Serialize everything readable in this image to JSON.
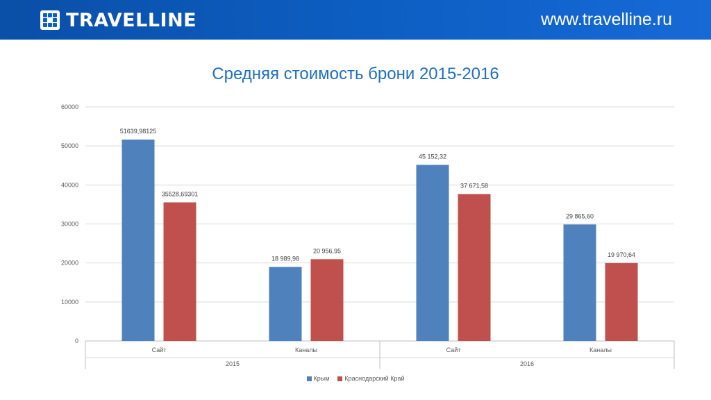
{
  "header": {
    "brand": "TRAVELLINE",
    "website": "www.travelline.ru"
  },
  "colors": {
    "header_bg": "#0d5fc4",
    "title": "#1f6fc5",
    "series_crimea": "#4f81bd",
    "series_krasnodar": "#c0504d"
  },
  "chart_data": {
    "type": "bar",
    "title": "Средняя стоимость брони 2015-2016",
    "xlabel": "",
    "ylabel": "",
    "ylim": [
      0,
      60000
    ],
    "yticks": [
      "0",
      "10000",
      "20000",
      "30000",
      "40000",
      "50000",
      "60000"
    ],
    "grid": true,
    "legend_position": "bottom",
    "categories": [
      "Сайт",
      "Каналы",
      "Сайт",
      "Каналы"
    ],
    "groups": [
      {
        "label": "2015",
        "categories": [
          "Сайт",
          "Каналы"
        ]
      },
      {
        "label": "2016",
        "categories": [
          "Сайт",
          "Каналы"
        ]
      }
    ],
    "series": [
      {
        "name": "Крым",
        "color": "#4f81bd",
        "values": [
          51639.98125,
          18989.98,
          45152.32,
          29865.6
        ],
        "labels": [
          "51639,98125",
          "18 989,98",
          "45 152,32",
          "29 865,60"
        ]
      },
      {
        "name": "Краснодарский Край",
        "color": "#c0504d",
        "values": [
          35528.69301,
          20956.95,
          37671.58,
          19970.64
        ],
        "labels": [
          "35528,69301",
          "20 956,95",
          "37 671,58",
          "19 970,64"
        ]
      }
    ]
  }
}
